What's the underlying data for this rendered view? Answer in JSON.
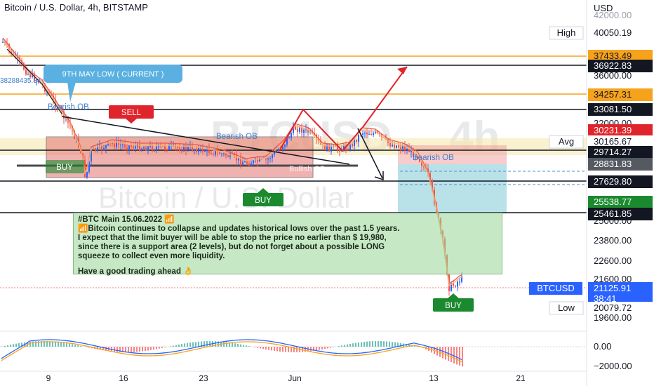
{
  "header": {
    "title": "Bitcoin / U.S. Dollar, 4h, BITSTAMP"
  },
  "price_axis": {
    "currency": "USD",
    "tick_labels": [
      "42000.00",
      "36000.00",
      "32000.00",
      "25000.00",
      "23800.00",
      "22600.00",
      "21600.00",
      "19600.00"
    ],
    "badges": {
      "high_label": "High",
      "high_value": "40050.19",
      "avg_label": "Avg",
      "avg_value": "30165.67",
      "low_label": "Low",
      "low_value": "20079.72",
      "btc_symbol": "BTCUSD",
      "btc_value": "21125.91",
      "countdown": "38:41",
      "level_37433": "37433.49",
      "level_36922": "36922.83",
      "level_34257": "34257.31",
      "level_33081": "33081.50",
      "level_30231": "30231.39",
      "level_29714": "29714.27",
      "level_28831": "28831.83",
      "level_27629": "27629.80",
      "level_25538": "25538.77",
      "level_25461": "25461.85"
    }
  },
  "indicator_axis": {
    "zero_label": "0.00",
    "min_label": "−2000.00"
  },
  "time_axis": {
    "labels": [
      "9",
      "16",
      "23",
      "Jun",
      "13",
      "21"
    ]
  },
  "annotations": {
    "may_low": "9TH MAY LOW ( CURRENT )",
    "sell": "SELL",
    "buy_left": "BUY",
    "buy_mid": "BUY",
    "buy_right": "BUY",
    "bearish_ob_1": "Bearish OB",
    "bearish_ob_2": "Bearish OB",
    "bearish_ob_3": "Bearish OB",
    "bullish_ob": "Bullish OB",
    "left_values": "38288435.34"
  },
  "watermark": {
    "ticker": "BTCUSD",
    "interval": "4h",
    "name": "Bitcoin / U.S. Dollar"
  },
  "note": {
    "title": "#BTC Main 15.06.2022 📶",
    "line1": "📶Bitcoin continues to collapse and updates historical lows over the past 1.5 years.",
    "line2": "I expect that the limit buyer will be able to stop the price no earlier than $ 19,980,",
    "line3": "since there is a support area (2 levels), but do not forget about a possible LONG",
    "line4": "squeeze to collect even more liquidity.",
    "line5": "Have a good trading ahead 👌"
  },
  "colors": {
    "candle_up": "#2962ff",
    "candle_down": "#ef5350",
    "orange": "#f7a21b",
    "red_zone": "#e57373",
    "green_label": "#1b8a2f",
    "sell_red": "#e0242b",
    "teal": "#4fb3c8",
    "callout": "#5ab0e0",
    "badge_blue": "#2962ff"
  }
}
